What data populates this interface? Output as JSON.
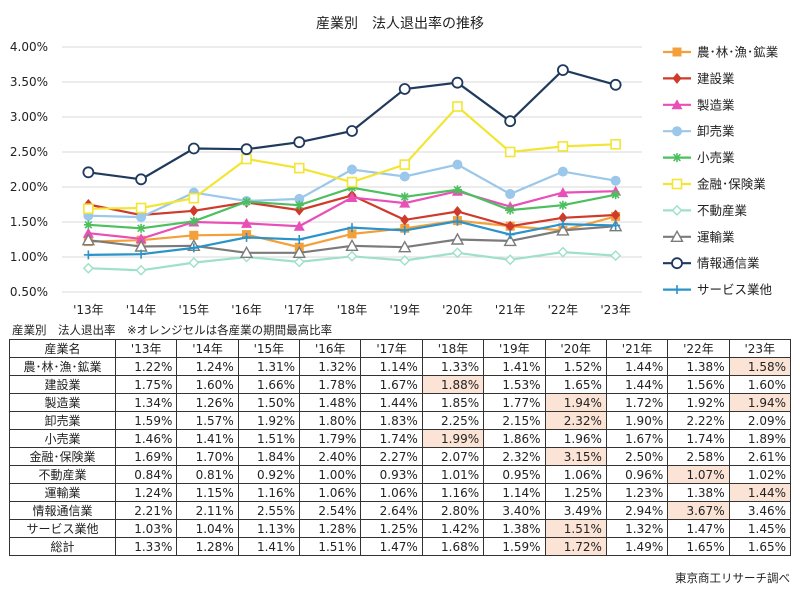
{
  "chart_data": {
    "type": "line",
    "title": "産業別　法人退出率の推移",
    "categories": [
      "'13年",
      "'14年",
      "'15年",
      "'16年",
      "'17年",
      "'18年",
      "'19年",
      "'20年",
      "'21年",
      "'22年",
      "'23年"
    ],
    "ylim": [
      0.005,
      0.04
    ],
    "yticks": [
      "0.50%",
      "1.00%",
      "1.50%",
      "2.00%",
      "2.50%",
      "3.00%",
      "3.50%",
      "4.00%"
    ],
    "grid": true,
    "legend_position": "right",
    "series": [
      {
        "name": "農･林･漁･鉱業",
        "color": "#f4a03a",
        "marker": "square",
        "values": [
          1.22,
          1.24,
          1.31,
          1.32,
          1.14,
          1.33,
          1.41,
          1.52,
          1.44,
          1.38,
          1.58
        ]
      },
      {
        "name": "建設業",
        "color": "#cf3a2a",
        "marker": "diamond",
        "values": [
          1.75,
          1.6,
          1.66,
          1.78,
          1.67,
          1.88,
          1.53,
          1.65,
          1.44,
          1.56,
          1.6
        ]
      },
      {
        "name": "製造業",
        "color": "#e84fb7",
        "marker": "triangle",
        "values": [
          1.34,
          1.26,
          1.5,
          1.48,
          1.44,
          1.85,
          1.77,
          1.94,
          1.72,
          1.92,
          1.94
        ]
      },
      {
        "name": "卸売業",
        "color": "#9bc7ea",
        "marker": "circle",
        "values": [
          1.59,
          1.57,
          1.92,
          1.8,
          1.83,
          2.25,
          2.15,
          2.32,
          1.9,
          2.22,
          2.09
        ]
      },
      {
        "name": "小売業",
        "color": "#4cbf5e",
        "marker": "star",
        "values": [
          1.46,
          1.41,
          1.51,
          1.79,
          1.74,
          1.99,
          1.86,
          1.96,
          1.67,
          1.74,
          1.89
        ]
      },
      {
        "name": "金融･保険業",
        "color": "#f2e533",
        "marker": "square-open",
        "values": [
          1.69,
          1.7,
          1.84,
          2.4,
          2.27,
          2.07,
          2.32,
          3.15,
          2.5,
          2.58,
          2.61
        ]
      },
      {
        "name": "不動産業",
        "color": "#9fe0c9",
        "marker": "diamond-open",
        "values": [
          0.84,
          0.81,
          0.92,
          1.0,
          0.93,
          1.01,
          0.95,
          1.06,
          0.96,
          1.07,
          1.02
        ]
      },
      {
        "name": "運輸業",
        "color": "#7b7b7b",
        "marker": "triangle-open",
        "values": [
          1.24,
          1.15,
          1.16,
          1.06,
          1.06,
          1.16,
          1.14,
          1.25,
          1.23,
          1.38,
          1.44
        ]
      },
      {
        "name": "情報通信業",
        "color": "#1f3a5c",
        "marker": "circle-open",
        "values": [
          2.21,
          2.11,
          2.55,
          2.54,
          2.64,
          2.8,
          3.4,
          3.49,
          2.94,
          3.67,
          3.46
        ]
      },
      {
        "name": "サービス業他",
        "color": "#2a93c9",
        "marker": "plus",
        "values": [
          1.03,
          1.04,
          1.13,
          1.28,
          1.25,
          1.42,
          1.38,
          1.51,
          1.32,
          1.47,
          1.45
        ]
      }
    ]
  },
  "table": {
    "caption": "産業別　法人退出率　※オレンジセルは各産業の期間最高比率",
    "header_name": "産業名",
    "headers": [
      "'13年",
      "'14年",
      "'15年",
      "'16年",
      "'17年",
      "'18年",
      "'19年",
      "'20年",
      "'21年",
      "'22年",
      "'23年"
    ],
    "rows": [
      {
        "name": "農･林･漁･鉱業",
        "values": [
          "1.22%",
          "1.24%",
          "1.31%",
          "1.32%",
          "1.14%",
          "1.33%",
          "1.41%",
          "1.52%",
          "1.44%",
          "1.38%",
          "1.58%"
        ],
        "highlight": [
          10
        ]
      },
      {
        "name": "建設業",
        "values": [
          "1.75%",
          "1.60%",
          "1.66%",
          "1.78%",
          "1.67%",
          "1.88%",
          "1.53%",
          "1.65%",
          "1.44%",
          "1.56%",
          "1.60%"
        ],
        "highlight": [
          5
        ]
      },
      {
        "name": "製造業",
        "values": [
          "1.34%",
          "1.26%",
          "1.50%",
          "1.48%",
          "1.44%",
          "1.85%",
          "1.77%",
          "1.94%",
          "1.72%",
          "1.92%",
          "1.94%"
        ],
        "highlight": [
          7,
          10
        ]
      },
      {
        "name": "卸売業",
        "values": [
          "1.59%",
          "1.57%",
          "1.92%",
          "1.80%",
          "1.83%",
          "2.25%",
          "2.15%",
          "2.32%",
          "1.90%",
          "2.22%",
          "2.09%"
        ],
        "highlight": [
          7
        ]
      },
      {
        "name": "小売業",
        "values": [
          "1.46%",
          "1.41%",
          "1.51%",
          "1.79%",
          "1.74%",
          "1.99%",
          "1.86%",
          "1.96%",
          "1.67%",
          "1.74%",
          "1.89%"
        ],
        "highlight": [
          5
        ]
      },
      {
        "name": "金融･保険業",
        "values": [
          "1.69%",
          "1.70%",
          "1.84%",
          "2.40%",
          "2.27%",
          "2.07%",
          "2.32%",
          "3.15%",
          "2.50%",
          "2.58%",
          "2.61%"
        ],
        "highlight": [
          7
        ]
      },
      {
        "name": "不動産業",
        "values": [
          "0.84%",
          "0.81%",
          "0.92%",
          "1.00%",
          "0.93%",
          "1.01%",
          "0.95%",
          "1.06%",
          "0.96%",
          "1.07%",
          "1.02%"
        ],
        "highlight": [
          9
        ]
      },
      {
        "name": "運輸業",
        "values": [
          "1.24%",
          "1.15%",
          "1.16%",
          "1.06%",
          "1.06%",
          "1.16%",
          "1.14%",
          "1.25%",
          "1.23%",
          "1.38%",
          "1.44%"
        ],
        "highlight": [
          10
        ]
      },
      {
        "name": "情報通信業",
        "values": [
          "2.21%",
          "2.11%",
          "2.55%",
          "2.54%",
          "2.64%",
          "2.80%",
          "3.40%",
          "3.49%",
          "2.94%",
          "3.67%",
          "3.46%"
        ],
        "highlight": [
          9
        ]
      },
      {
        "name": "サービス業他",
        "values": [
          "1.03%",
          "1.04%",
          "1.13%",
          "1.28%",
          "1.25%",
          "1.42%",
          "1.38%",
          "1.51%",
          "1.32%",
          "1.47%",
          "1.45%"
        ],
        "highlight": [
          7
        ]
      },
      {
        "name": "総計",
        "values": [
          "1.33%",
          "1.28%",
          "1.41%",
          "1.51%",
          "1.47%",
          "1.68%",
          "1.59%",
          "1.72%",
          "1.49%",
          "1.65%",
          "1.65%"
        ],
        "highlight": [
          7
        ]
      }
    ]
  },
  "source": "東京商工リサーチ調べ"
}
